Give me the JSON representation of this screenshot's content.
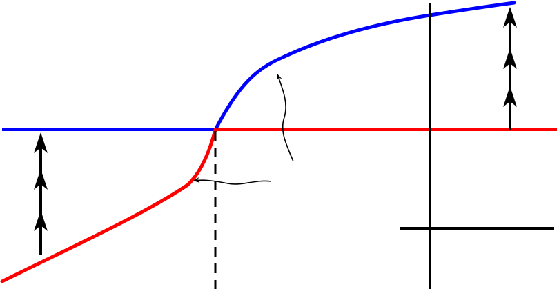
{
  "diagram": {
    "background": "#ffffff",
    "colors": {
      "upper_branch": "#0000ff",
      "lower_branch": "#ff0000",
      "ink": "#000000"
    },
    "elements": [
      "blue-horizontal-line",
      "red-horizontal-line",
      "blue-curve",
      "red-curve",
      "dashed-vertical-line",
      "vertical-axis-line",
      "horizontal-short-axis-line",
      "left-triple-arrow",
      "right-triple-arrow",
      "pointer-arrow-to-blue-curve",
      "pointer-arrow-to-red-curve"
    ]
  }
}
